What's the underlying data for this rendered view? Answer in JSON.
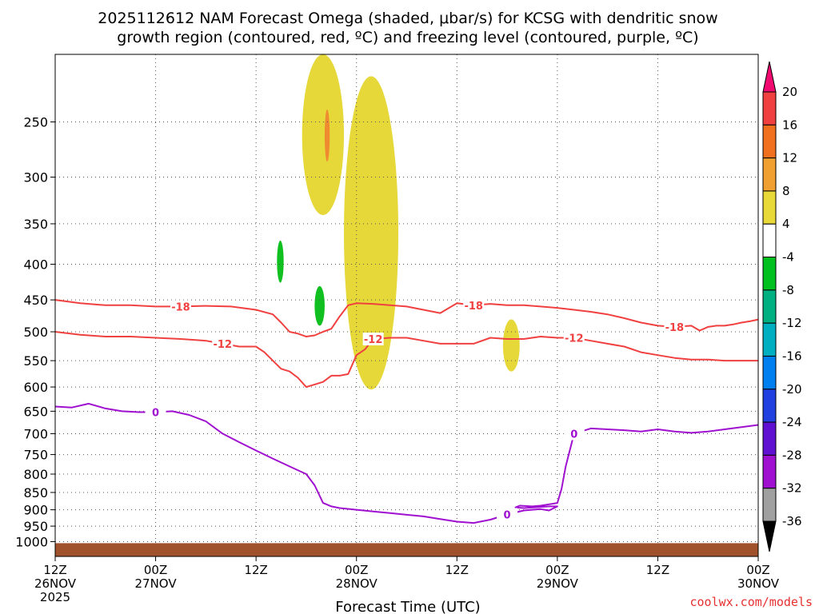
{
  "chart_data": {
    "type": "contour",
    "title_line1": "2025112612 NAM Forecast Omega (shaded, μbar/s) for KCSG with dendritic snow",
    "title_line2": "growth region (contoured, red, ºC) and freezing level (contoured, purple, ºC)",
    "xlabel": "Forecast Time (UTC)",
    "credit": "coolwx.com/models",
    "x_range_hours": [
      0,
      84
    ],
    "x_ticks": [
      {
        "hour": 0,
        "line1": "12Z",
        "line2": "26NOV",
        "line3": "2025"
      },
      {
        "hour": 12,
        "line1": "00Z",
        "line2": "27NOV",
        "line3": ""
      },
      {
        "hour": 24,
        "line1": "12Z",
        "line2": "",
        "line3": ""
      },
      {
        "hour": 36,
        "line1": "00Z",
        "line2": "28NOV",
        "line3": ""
      },
      {
        "hour": 48,
        "line1": "12Z",
        "line2": "",
        "line3": ""
      },
      {
        "hour": 60,
        "line1": "00Z",
        "line2": "29NOV",
        "line3": ""
      },
      {
        "hour": 72,
        "line1": "12Z",
        "line2": "",
        "line3": ""
      },
      {
        "hour": 84,
        "line1": "00Z",
        "line2": "30NOV",
        "line3": ""
      }
    ],
    "y_scale": "log pressure (hPa), inverted",
    "y_range_hpa": [
      1050,
      200
    ],
    "y_ticks": [
      250,
      300,
      350,
      400,
      450,
      500,
      550,
      600,
      650,
      700,
      750,
      800,
      850,
      900,
      950,
      1000
    ],
    "colorbar": {
      "ticks": [
        "20",
        "16",
        "12",
        "8",
        "4",
        "-4",
        "-8",
        "-12",
        "-16",
        "-20",
        "-24",
        "-28",
        "-32",
        "-36"
      ],
      "colors": [
        "#f00a70",
        "#f04040",
        "#f07020",
        "#f0a030",
        "#e8d838",
        "#ffffff",
        "#00c020",
        "#00b080",
        "#00b0c0",
        "#0080f0",
        "#2040e0",
        "#6010d0",
        "#a010d0",
        "#a0a0a0",
        "#000000"
      ]
    },
    "omega_regions": [
      {
        "value": "4 to 8",
        "color": "#e5d838",
        "hours": [
          29.5,
          34.5
        ],
        "hpa": [
          200,
          340
        ]
      },
      {
        "value": "12 to 16",
        "color": "#f08a30",
        "hours": [
          32.2,
          32.8
        ],
        "hpa": [
          240,
          285
        ]
      },
      {
        "value": "4 to 8",
        "color": "#e5d838",
        "hours": [
          34.5,
          41.0
        ],
        "hpa": [
          215,
          605
        ]
      },
      {
        "value": "4 to 8",
        "color": "#e5d838",
        "hours": [
          53.5,
          55.5
        ],
        "hpa": [
          480,
          570
        ]
      },
      {
        "value": "-4 to -8",
        "color": "#10c020",
        "hours": [
          26.5,
          27.3
        ],
        "hpa": [
          370,
          425
        ]
      },
      {
        "value": "-4 to -8",
        "color": "#10c020",
        "hours": [
          31.0,
          32.2
        ],
        "hpa": [
          430,
          490
        ]
      }
    ],
    "series": [
      {
        "name": "-18",
        "color": "#f04040",
        "x": [
          0,
          3,
          6,
          9,
          12,
          15,
          18,
          21,
          24,
          26,
          27,
          28,
          29,
          30,
          31,
          32,
          33,
          34,
          35,
          36,
          38,
          40,
          42,
          44,
          46,
          48,
          50,
          52,
          54,
          56,
          58,
          60,
          62,
          64,
          66,
          68,
          70,
          72,
          74,
          76,
          77,
          78,
          79,
          80,
          81,
          82,
          83,
          84
        ],
        "y": [
          450,
          455,
          458,
          458,
          460,
          460,
          459,
          460,
          465,
          472,
          485,
          500,
          503,
          508,
          506,
          500,
          495,
          475,
          458,
          455,
          456,
          458,
          460,
          465,
          470,
          455,
          458,
          456,
          458,
          458,
          460,
          462,
          465,
          468,
          472,
          478,
          485,
          490,
          492,
          490,
          498,
          492,
          490,
          490,
          488,
          485,
          483,
          480
        ]
      },
      {
        "name": "-12",
        "color": "#f04040",
        "x": [
          0,
          3,
          6,
          9,
          12,
          15,
          18,
          20,
          22,
          24,
          25,
          26,
          27,
          28,
          29,
          30,
          31,
          32,
          33,
          34,
          35,
          36,
          37,
          38,
          40,
          42,
          44,
          46,
          48,
          50,
          52,
          54,
          56,
          58,
          60,
          62,
          64,
          66,
          68,
          70,
          72,
          74,
          76,
          78,
          80,
          82,
          84
        ],
        "y": [
          500,
          505,
          508,
          508,
          510,
          512,
          515,
          520,
          525,
          525,
          535,
          550,
          565,
          570,
          582,
          600,
          595,
          590,
          578,
          578,
          575,
          540,
          530,
          512,
          510,
          510,
          515,
          520,
          520,
          520,
          510,
          512,
          512,
          508,
          510,
          510,
          515,
          520,
          525,
          535,
          540,
          545,
          548,
          548,
          550,
          550,
          550
        ]
      },
      {
        "name": "0",
        "color": "#a010d0",
        "x": [
          0,
          2,
          4,
          6,
          8,
          10,
          12,
          14,
          16,
          18,
          20,
          22,
          24,
          26,
          28,
          30,
          31,
          32,
          33,
          34,
          36,
          38,
          40,
          42,
          44,
          46,
          48,
          50,
          52,
          54,
          56,
          58,
          59,
          60,
          59,
          56,
          55,
          55.5,
          57,
          58,
          59,
          60,
          60.5,
          61,
          62,
          64,
          66,
          68,
          70,
          72,
          74,
          76,
          78,
          80,
          82,
          84
        ],
        "y": [
          640,
          642,
          634,
          644,
          650,
          652,
          652,
          650,
          658,
          672,
          700,
          720,
          740,
          760,
          780,
          800,
          830,
          880,
          890,
          895,
          900,
          905,
          910,
          915,
          920,
          928,
          936,
          940,
          930,
          914,
          902,
          898,
          902,
          890,
          890,
          895,
          893,
          888,
          890,
          888,
          884,
          880,
          840,
          780,
          700,
          688,
          690,
          692,
          695,
          690,
          695,
          698,
          695,
          690,
          685,
          680
        ]
      }
    ],
    "ground": {
      "label": "terrain",
      "color": "#a0522d",
      "hpa_top": 1005
    }
  }
}
